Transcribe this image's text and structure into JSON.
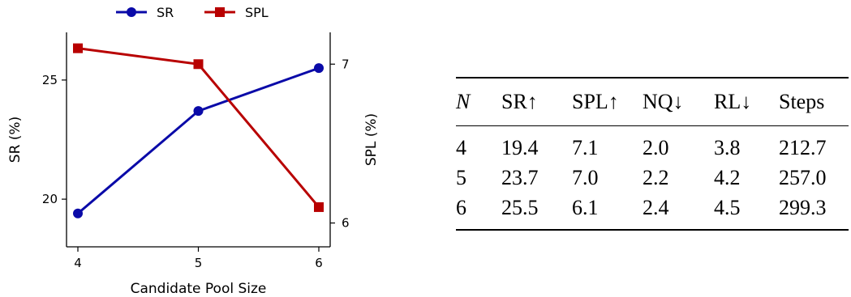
{
  "chart_data": {
    "type": "line",
    "xlabel": "Candidate Pool Size",
    "ylabel_left": "SR (%)",
    "ylabel_right": "SPL (%)",
    "x": [
      4,
      5,
      6
    ],
    "x_ticks": [
      "4",
      "5",
      "6"
    ],
    "left_axis": {
      "range": [
        18,
        27
      ],
      "ticks": [
        "20",
        "25"
      ],
      "tick_values": [
        20,
        25
      ]
    },
    "right_axis": {
      "range": [
        5.85,
        7.2
      ],
      "ticks": [
        "6",
        "7"
      ],
      "tick_values": [
        6,
        7
      ]
    },
    "series": [
      {
        "name": "SR",
        "axis": "left",
        "color": "#0a0aa8",
        "marker": "circle",
        "values": [
          19.4,
          23.7,
          25.5
        ]
      },
      {
        "name": "SPL",
        "axis": "right",
        "color": "#b80000",
        "marker": "square",
        "values": [
          7.1,
          7.0,
          6.1
        ]
      }
    ],
    "legend_position": "top"
  },
  "table": {
    "headers": [
      "N",
      "SR↑",
      "SPL↑",
      "NQ↓",
      "RL↓",
      "Steps"
    ],
    "rows": [
      [
        "4",
        "19.4",
        "7.1",
        "2.0",
        "3.8",
        "212.7"
      ],
      [
        "5",
        "23.7",
        "7.0",
        "2.2",
        "4.2",
        "257.0"
      ],
      [
        "6",
        "25.5",
        "6.1",
        "2.4",
        "4.5",
        "299.3"
      ]
    ]
  }
}
